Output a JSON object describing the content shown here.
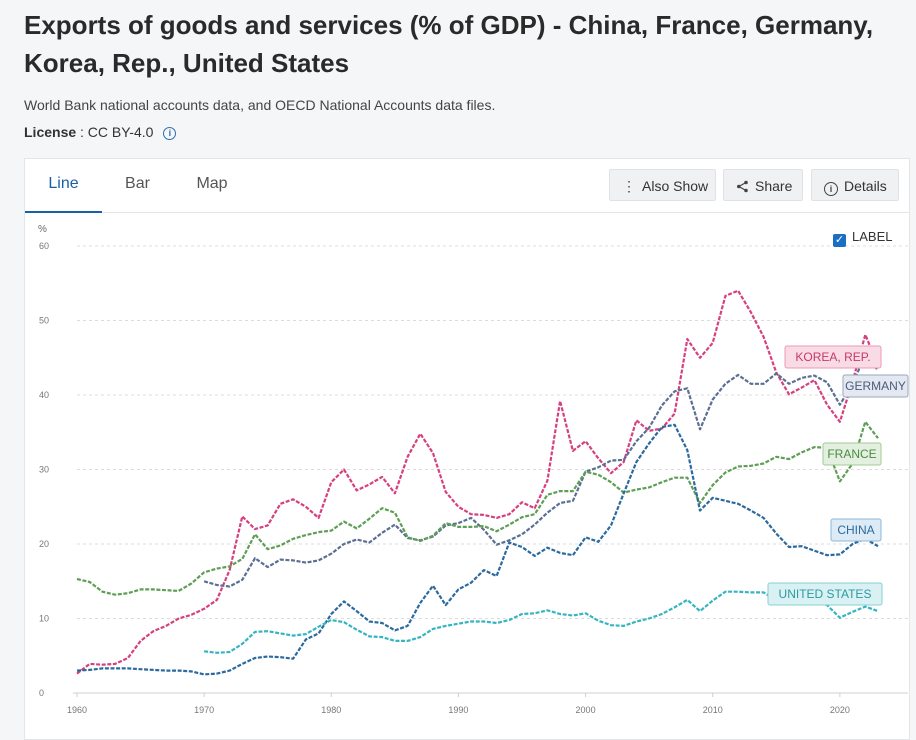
{
  "page": {
    "title": "Exports of goods and services (% of GDP) - China, France, Germany, Korea, Rep., United States",
    "source": "World Bank national accounts data, and OECD National Accounts data files.",
    "license_label": "License",
    "license_value": ": CC BY-4.0"
  },
  "tabs": [
    {
      "label": "Line",
      "active": true
    },
    {
      "label": "Bar",
      "active": false
    },
    {
      "label": "Map",
      "active": false
    }
  ],
  "buttons": {
    "also_show": "Also Show",
    "share": "Share",
    "details": "Details"
  },
  "label_toggle": {
    "label": "LABEL",
    "checked": true
  },
  "chart_data": {
    "type": "line",
    "ylabel": "%",
    "ylim": [
      0,
      60
    ],
    "yticks": [
      0,
      10,
      20,
      30,
      40,
      50,
      60
    ],
    "xlim": [
      1960,
      2023
    ],
    "xticks": [
      1960,
      1970,
      1980,
      1990,
      2000,
      2010,
      2020
    ],
    "grid": true,
    "series": [
      {
        "name": "KOREA, REP.",
        "color": "#d6407e",
        "start": 1960,
        "values": [
          2.6,
          3.9,
          3.8,
          3.9,
          4.7,
          7.0,
          8.3,
          9.0,
          10.0,
          10.5,
          11.3,
          12.5,
          16.5,
          23.7,
          22.0,
          22.5,
          25.4,
          26.0,
          25.0,
          23.5,
          28.3,
          30.0,
          27.2,
          28.0,
          29.0,
          26.8,
          31.7,
          34.8,
          32.2,
          27.0,
          25.0,
          24.0,
          23.9,
          23.5,
          24.0,
          25.6,
          24.8,
          28.5,
          39.2,
          32.5,
          33.8,
          31.5,
          29.5,
          31.0,
          36.6,
          35.2,
          35.5,
          37.5,
          47.5,
          45.0,
          47.0,
          53.3,
          54.0,
          51.1,
          47.8,
          43.0,
          40.1,
          41.0,
          42.0,
          38.7,
          36.4,
          41.8,
          48.1,
          44.0
        ]
      },
      {
        "name": "GERMANY",
        "color": "#5b6f94",
        "start": 1970,
        "values": [
          15.0,
          14.5,
          14.3,
          15.2,
          18.1,
          16.9,
          17.9,
          17.8,
          17.5,
          17.8,
          18.7,
          20.0,
          20.6,
          20.2,
          21.5,
          22.6,
          20.8,
          20.5,
          21.0,
          22.5,
          22.8,
          23.5,
          21.9,
          19.9,
          20.5,
          21.3,
          22.6,
          24.2,
          25.5,
          25.8,
          29.7,
          30.3,
          31.2,
          31.3,
          33.8,
          35.6,
          38.6,
          40.5,
          40.9,
          35.4,
          39.4,
          41.5,
          42.7,
          41.5,
          41.5,
          42.9,
          41.5,
          42.3,
          42.6,
          41.7,
          38.7,
          41.5,
          45.4,
          43.3
        ]
      },
      {
        "name": "FRANCE",
        "color": "#5e9e55",
        "start": 1960,
        "values": [
          15.3,
          14.9,
          13.6,
          13.2,
          13.4,
          13.9,
          13.9,
          13.8,
          13.7,
          14.7,
          16.2,
          16.7,
          17.0,
          18.0,
          21.3,
          19.3,
          19.8,
          20.7,
          21.2,
          21.6,
          21.8,
          23.0,
          22.1,
          23.4,
          24.8,
          24.2,
          20.9,
          20.4,
          21.1,
          22.8,
          22.3,
          22.3,
          22.4,
          21.7,
          22.6,
          23.6,
          24.0,
          26.6,
          27.1,
          27.1,
          29.7,
          29.3,
          28.3,
          26.9,
          27.3,
          27.6,
          28.3,
          28.9,
          28.9,
          25.5,
          27.9,
          29.6,
          30.4,
          30.5,
          30.8,
          31.7,
          31.4,
          32.3,
          33.0,
          32.9,
          28.4,
          30.8,
          36.4,
          34.2
        ]
      },
      {
        "name": "CHINA",
        "color": "#2b6a9e",
        "start": 1960,
        "values": [
          3.0,
          3.1,
          3.3,
          3.3,
          3.3,
          3.2,
          3.1,
          3.0,
          3.0,
          2.9,
          2.5,
          2.6,
          3.0,
          3.9,
          4.7,
          4.9,
          4.8,
          4.6,
          7.2,
          8.0,
          10.6,
          12.3,
          11.0,
          9.6,
          9.4,
          8.4,
          9.0,
          12.1,
          14.4,
          11.8,
          13.9,
          14.8,
          16.5,
          15.7,
          20.2,
          19.6,
          18.4,
          19.5,
          18.8,
          18.5,
          20.9,
          20.3,
          22.5,
          26.8,
          31.0,
          33.5,
          35.7,
          36.0,
          32.6,
          24.5,
          26.2,
          25.8,
          25.4,
          24.5,
          23.5,
          21.4,
          19.6,
          19.7,
          19.1,
          18.5,
          18.6,
          20.0,
          20.7,
          19.7
        ]
      },
      {
        "name": "UNITED STATES",
        "color": "#35b5bf",
        "start": 1970,
        "values": [
          5.6,
          5.4,
          5.5,
          6.6,
          8.2,
          8.3,
          8.0,
          7.7,
          7.9,
          8.9,
          9.8,
          9.5,
          8.5,
          7.6,
          7.5,
          7.0,
          7.0,
          7.5,
          8.6,
          9.0,
          9.3,
          9.6,
          9.6,
          9.4,
          9.8,
          10.6,
          10.7,
          11.1,
          10.6,
          10.4,
          10.7,
          9.7,
          9.1,
          9.0,
          9.6,
          10.0,
          10.6,
          11.5,
          12.5,
          11.0,
          12.4,
          13.6,
          13.6,
          13.5,
          13.5,
          12.4,
          11.9,
          12.1,
          12.2,
          11.8,
          10.1,
          10.9,
          11.6,
          11.0
        ]
      }
    ],
    "series_labels": [
      {
        "series": "KOREA, REP.",
        "fill": "#f9dbe5",
        "border": "#ec9ab8",
        "text": "#c8386c"
      },
      {
        "series": "GERMANY",
        "fill": "#e4e8f0",
        "border": "#9aa7c0",
        "text": "#4a5b7c"
      },
      {
        "series": "FRANCE",
        "fill": "#e3f0df",
        "border": "#a3c99a",
        "text": "#4c8a42"
      },
      {
        "series": "CHINA",
        "fill": "#dcebf6",
        "border": "#8cb7d9",
        "text": "#2b6a9e"
      },
      {
        "series": "UNITED STATES",
        "fill": "#d9f1f2",
        "border": "#86d0d6",
        "text": "#2a9aa4"
      }
    ]
  }
}
